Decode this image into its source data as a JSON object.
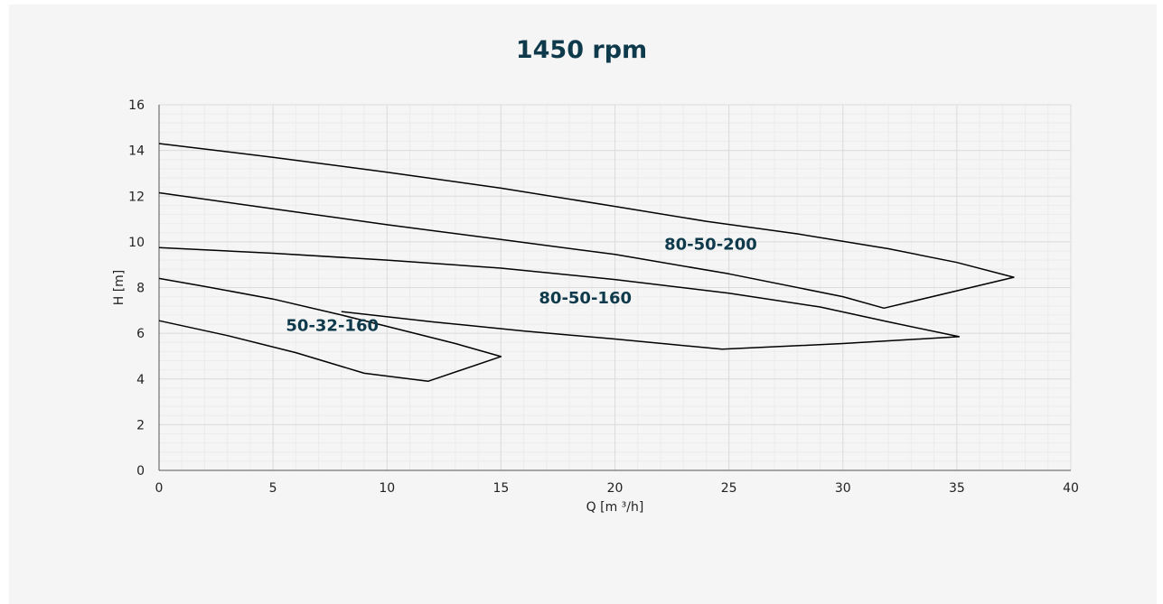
{
  "chart_data": {
    "type": "line",
    "title": "1450 rpm",
    "xlabel": "Q [m ³/h]",
    "ylabel": "H [m]",
    "xlim": [
      0,
      40
    ],
    "ylim": [
      0,
      16
    ],
    "xticks": [
      0,
      5,
      10,
      15,
      20,
      25,
      30,
      35,
      40
    ],
    "yticks": [
      0,
      2,
      4,
      6,
      8,
      10,
      12,
      14,
      16
    ],
    "grid": true,
    "series": [
      {
        "name": "50-32-160",
        "color": "#000000",
        "points": [
          [
            0,
            6.55
          ],
          [
            3,
            5.9
          ],
          [
            6,
            5.15
          ],
          [
            9,
            4.25
          ],
          [
            11.8,
            3.9
          ],
          [
            15,
            4.98
          ],
          [
            13,
            5.55
          ],
          [
            10,
            6.3
          ],
          [
            8,
            6.8
          ],
          [
            5,
            7.5
          ],
          [
            2,
            8.05
          ],
          [
            0,
            8.4
          ]
        ]
      },
      {
        "name": "80-50-160",
        "color": "#000000",
        "points": [
          [
            8,
            6.95
          ],
          [
            12,
            6.5
          ],
          [
            16,
            6.1
          ],
          [
            20,
            5.75
          ],
          [
            24.7,
            5.3
          ],
          [
            30,
            5.55
          ],
          [
            35.1,
            5.85
          ],
          [
            32,
            6.5
          ],
          [
            29,
            7.15
          ],
          [
            25,
            7.75
          ],
          [
            20,
            8.35
          ],
          [
            15,
            8.85
          ],
          [
            10,
            9.2
          ],
          [
            5,
            9.5
          ],
          [
            0,
            9.75
          ]
        ]
      },
      {
        "name": "80-50-200",
        "color": "#000000",
        "points": [
          [
            0,
            12.15
          ],
          [
            5,
            11.45
          ],
          [
            10,
            10.75
          ],
          [
            15,
            10.1
          ],
          [
            20,
            9.45
          ],
          [
            25,
            8.6
          ],
          [
            30,
            7.6
          ],
          [
            31.8,
            7.1
          ],
          [
            37.5,
            8.45
          ],
          [
            35,
            9.1
          ],
          [
            32,
            9.7
          ],
          [
            28,
            10.35
          ],
          [
            24,
            10.9
          ],
          [
            20,
            11.55
          ],
          [
            15,
            12.35
          ],
          [
            10,
            13.05
          ],
          [
            5,
            13.7
          ],
          [
            0,
            14.3
          ]
        ]
      }
    ],
    "annotations": [
      {
        "text": "50-32-160",
        "x": 7.6,
        "y": 6.1
      },
      {
        "text": "80-50-160",
        "x": 18.7,
        "y": 7.3
      },
      {
        "text": "80-50-200",
        "x": 24.2,
        "y": 9.65
      }
    ]
  }
}
